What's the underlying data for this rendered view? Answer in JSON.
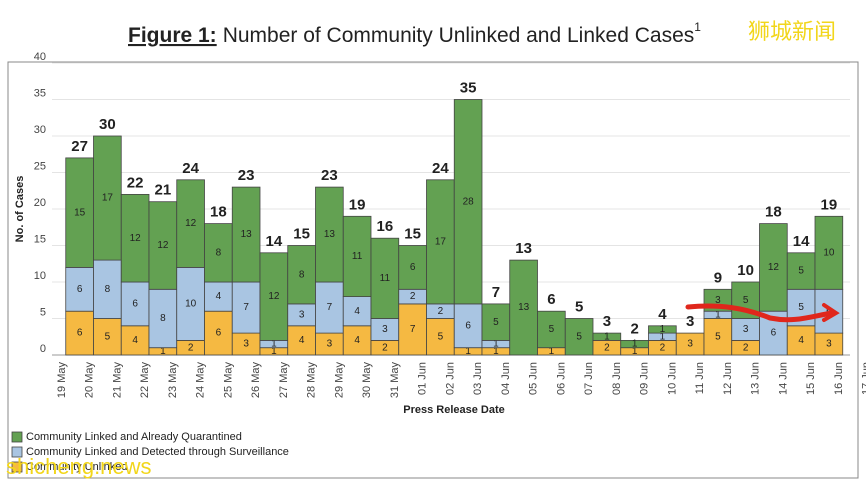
{
  "chart_data": {
    "type": "stacked_bar",
    "title_prefix": "Figure 1:",
    "title": "Number of Community Unlinked and Linked Cases",
    "title_sup": "1",
    "watermark_top": "狮城新闻",
    "watermark_bottom": "shicheng.news",
    "y_label": "No. of Cases",
    "x_label": "Press Release Date",
    "categories": [
      "19 May",
      "20 May",
      "21 May",
      "22 May",
      "23 May",
      "24 May",
      "25 May",
      "26 May",
      "27 May",
      "28 May",
      "29 May",
      "30 May",
      "31 May",
      "01 Jun",
      "02 Jun",
      "03 Jun",
      "04 Jun",
      "05 Jun",
      "06 Jun",
      "07 Jun",
      "08 Jun",
      "09 Jun",
      "10 Jun",
      "11 Jun",
      "12 Jun",
      "13 Jun",
      "14 Jun",
      "15 Jun",
      "16 Jun",
      "17 Jun"
    ],
    "series": [
      {
        "name": "Community Unlinked",
        "color": "#f5b942",
        "values": [
          null,
          6,
          5,
          4,
          1,
          2,
          6,
          3,
          1,
          4,
          3,
          4,
          2,
          7,
          5,
          1,
          1,
          0,
          1,
          0,
          2,
          1,
          2,
          3,
          5,
          2,
          0,
          4,
          3,
          null
        ]
      },
      {
        "name": "Community Linked and Detected through Surveillance",
        "color": "#a9c5e2",
        "values": [
          null,
          6,
          8,
          6,
          8,
          10,
          4,
          7,
          1,
          3,
          7,
          4,
          3,
          2,
          2,
          6,
          1,
          0,
          0,
          0,
          0,
          0,
          1,
          0,
          1,
          3,
          6,
          5,
          6,
          null
        ]
      },
      {
        "name": "Community Linked and Already Quarantined",
        "color": "#63a152",
        "values": [
          null,
          15,
          17,
          12,
          12,
          12,
          8,
          13,
          12,
          8,
          13,
          11,
          11,
          6,
          17,
          28,
          5,
          13,
          5,
          5,
          1,
          1,
          1,
          0,
          3,
          5,
          12,
          5,
          10,
          null
        ]
      }
    ],
    "totals": [
      null,
      27,
      30,
      22,
      21,
      24,
      18,
      23,
      14,
      15,
      23,
      19,
      16,
      15,
      24,
      35,
      7,
      13,
      6,
      5,
      3,
      2,
      4,
      3,
      9,
      10,
      18,
      14,
      19,
      null
    ],
    "ylim": [
      0,
      40
    ],
    "yticks": [
      0,
      5,
      10,
      15,
      20,
      25,
      30,
      35,
      40
    ],
    "grid": true
  }
}
